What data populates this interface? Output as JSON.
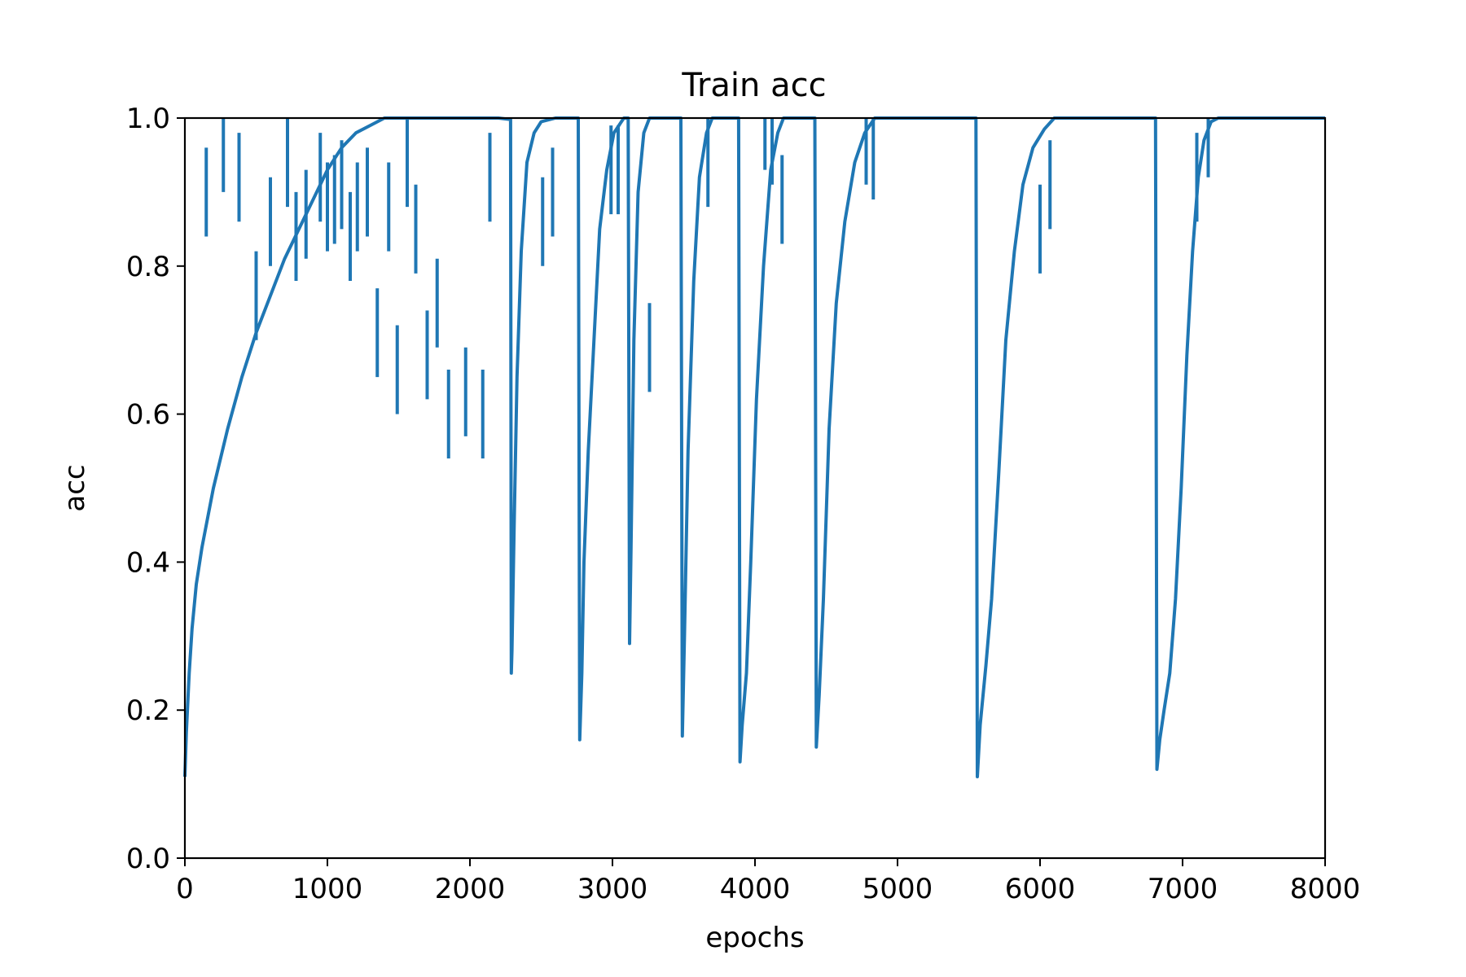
{
  "chart_data": {
    "type": "line",
    "title": "Train acc",
    "xlabel": "epochs",
    "ylabel": "acc",
    "xlim": [
      0,
      8000
    ],
    "ylim": [
      0.0,
      1.0
    ],
    "grid": false,
    "x_ticks": [
      "0",
      "1000",
      "2000",
      "3000",
      "4000",
      "5000",
      "6000",
      "7000",
      "8000"
    ],
    "y_ticks": [
      "0.0",
      "0.2",
      "0.4",
      "0.6",
      "0.8",
      "1.0"
    ],
    "line_color": "#1f77b4",
    "series": [
      {
        "points": [
          [
            0,
            0.11
          ],
          [
            10,
            0.17
          ],
          [
            30,
            0.25
          ],
          [
            50,
            0.31
          ],
          [
            80,
            0.37
          ],
          [
            120,
            0.42
          ],
          [
            200,
            0.5
          ],
          [
            300,
            0.58
          ],
          [
            400,
            0.65
          ],
          [
            500,
            0.71
          ],
          [
            600,
            0.76
          ],
          [
            700,
            0.81
          ],
          [
            800,
            0.85
          ],
          [
            900,
            0.89
          ],
          [
            1000,
            0.93
          ],
          [
            1100,
            0.96
          ],
          [
            1200,
            0.98
          ],
          [
            1300,
            0.99
          ],
          [
            1400,
            1.0
          ],
          [
            1600,
            1.0
          ],
          [
            1800,
            1.0
          ],
          [
            2000,
            1.0
          ],
          [
            2200,
            1.0
          ],
          [
            2285,
            0.998
          ],
          [
            2290,
            0.25
          ],
          [
            2295,
            0.28
          ],
          [
            2310,
            0.45
          ],
          [
            2330,
            0.65
          ],
          [
            2360,
            0.82
          ],
          [
            2400,
            0.94
          ],
          [
            2450,
            0.98
          ],
          [
            2500,
            0.995
          ],
          [
            2600,
            1.0
          ],
          [
            2760,
            1.0
          ],
          [
            2770,
            0.16
          ],
          [
            2785,
            0.25
          ],
          [
            2800,
            0.4
          ],
          [
            2830,
            0.55
          ],
          [
            2870,
            0.7
          ],
          [
            2910,
            0.85
          ],
          [
            2960,
            0.93
          ],
          [
            3010,
            0.98
          ],
          [
            3080,
            1.0
          ],
          [
            3110,
            1.0
          ],
          [
            3120,
            0.29
          ],
          [
            3130,
            0.42
          ],
          [
            3150,
            0.7
          ],
          [
            3180,
            0.9
          ],
          [
            3220,
            0.98
          ],
          [
            3260,
            1.0
          ],
          [
            3480,
            1.0
          ],
          [
            3490,
            0.165
          ],
          [
            3505,
            0.3
          ],
          [
            3530,
            0.55
          ],
          [
            3570,
            0.78
          ],
          [
            3610,
            0.92
          ],
          [
            3660,
            0.98
          ],
          [
            3700,
            1.0
          ],
          [
            3885,
            1.0
          ],
          [
            3895,
            0.13
          ],
          [
            3910,
            0.18
          ],
          [
            3940,
            0.25
          ],
          [
            3970,
            0.4
          ],
          [
            4010,
            0.62
          ],
          [
            4060,
            0.8
          ],
          [
            4110,
            0.93
          ],
          [
            4160,
            0.98
          ],
          [
            4200,
            1.0
          ],
          [
            4420,
            1.0
          ],
          [
            4430,
            0.15
          ],
          [
            4450,
            0.22
          ],
          [
            4480,
            0.35
          ],
          [
            4520,
            0.58
          ],
          [
            4570,
            0.75
          ],
          [
            4630,
            0.86
          ],
          [
            4700,
            0.94
          ],
          [
            4770,
            0.98
          ],
          [
            4840,
            1.0
          ],
          [
            5550,
            1.0
          ],
          [
            5560,
            0.11
          ],
          [
            5580,
            0.18
          ],
          [
            5620,
            0.26
          ],
          [
            5660,
            0.35
          ],
          [
            5710,
            0.52
          ],
          [
            5760,
            0.7
          ],
          [
            5820,
            0.82
          ],
          [
            5880,
            0.91
          ],
          [
            5950,
            0.96
          ],
          [
            6030,
            0.985
          ],
          [
            6100,
            1.0
          ],
          [
            6810,
            1.0
          ],
          [
            6820,
            0.12
          ],
          [
            6840,
            0.16
          ],
          [
            6870,
            0.2
          ],
          [
            6910,
            0.25
          ],
          [
            6950,
            0.35
          ],
          [
            6990,
            0.5
          ],
          [
            7030,
            0.68
          ],
          [
            7070,
            0.82
          ],
          [
            7110,
            0.92
          ],
          [
            7150,
            0.97
          ],
          [
            7200,
            0.995
          ],
          [
            7250,
            1.0
          ],
          [
            8000,
            1.0
          ]
        ],
        "drops": [
          [
            150,
            0.84
          ],
          [
            270,
            0.9
          ],
          [
            380,
            0.86
          ],
          [
            500,
            0.7
          ],
          [
            600,
            0.8
          ],
          [
            720,
            0.88
          ],
          [
            780,
            0.78
          ],
          [
            850,
            0.81
          ],
          [
            950,
            0.86
          ],
          [
            1000,
            0.82
          ],
          [
            1050,
            0.83
          ],
          [
            1100,
            0.85
          ],
          [
            1160,
            0.78
          ],
          [
            1210,
            0.82
          ],
          [
            1280,
            0.84
          ],
          [
            1350,
            0.65
          ],
          [
            1430,
            0.82
          ],
          [
            1490,
            0.6
          ],
          [
            1560,
            0.88
          ],
          [
            1620,
            0.79
          ],
          [
            1700,
            0.62
          ],
          [
            1770,
            0.69
          ],
          [
            1850,
            0.54
          ],
          [
            1970,
            0.57
          ],
          [
            2090,
            0.54
          ],
          [
            2140,
            0.86
          ],
          [
            2510,
            0.8
          ],
          [
            2580,
            0.84
          ],
          [
            2990,
            0.87
          ],
          [
            3040,
            0.87
          ],
          [
            3260,
            0.63
          ],
          [
            3670,
            0.88
          ],
          [
            4070,
            0.93
          ],
          [
            4120,
            0.91
          ],
          [
            4190,
            0.83
          ],
          [
            4780,
            0.91
          ],
          [
            4830,
            0.89
          ],
          [
            6000,
            0.79
          ],
          [
            6070,
            0.85
          ],
          [
            7100,
            0.86
          ],
          [
            7180,
            0.92
          ]
        ]
      }
    ]
  }
}
